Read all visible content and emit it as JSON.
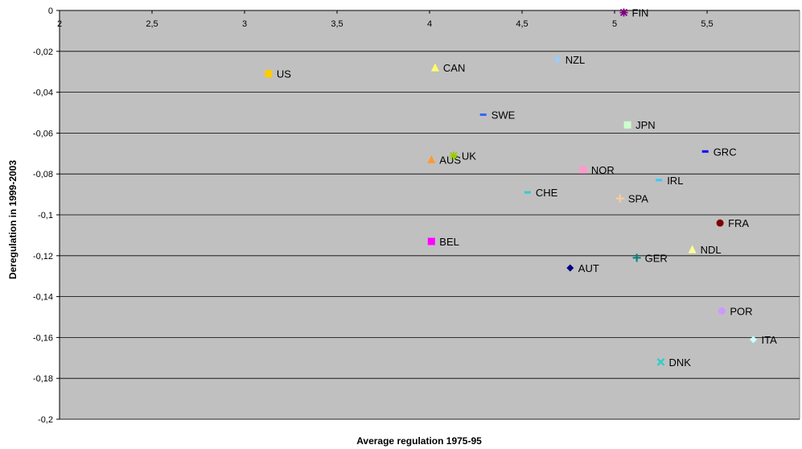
{
  "chart_data": {
    "type": "scatter",
    "xlabel": "Average regulation 1975-95",
    "ylabel": "Deregulation in 1999-2003",
    "xlim": [
      2,
      6
    ],
    "ylim": [
      -0.2,
      0
    ],
    "x_ticks": [
      {
        "value": 2,
        "label": "2"
      },
      {
        "value": 2.5,
        "label": "2,5"
      },
      {
        "value": 3,
        "label": "3"
      },
      {
        "value": 3.5,
        "label": "3,5"
      },
      {
        "value": 4,
        "label": "4"
      },
      {
        "value": 4.5,
        "label": "4,5"
      },
      {
        "value": 5,
        "label": "5"
      },
      {
        "value": 5.5,
        "label": "5,5"
      }
    ],
    "y_ticks": [
      {
        "value": 0,
        "label": "0"
      },
      {
        "value": -0.02,
        "label": "-0,02"
      },
      {
        "value": -0.04,
        "label": "-0,04"
      },
      {
        "value": -0.06,
        "label": "-0,06"
      },
      {
        "value": -0.08,
        "label": "-0,08"
      },
      {
        "value": -0.1,
        "label": "-0,1"
      },
      {
        "value": -0.12,
        "label": "-0,12"
      },
      {
        "value": -0.14,
        "label": "-0,14"
      },
      {
        "value": -0.16,
        "label": "-0,16"
      },
      {
        "value": -0.18,
        "label": "-0,18"
      },
      {
        "value": -0.2,
        "label": "-0,2"
      }
    ],
    "grid": "horizontal",
    "plot_background": "#c0c0c0",
    "points": [
      {
        "label": "FIN",
        "x": 5.05,
        "y": -0.001,
        "marker": "star",
        "color": "#800080"
      },
      {
        "label": "US",
        "x": 3.13,
        "y": -0.031,
        "marker": "square",
        "color": "#ffcc00"
      },
      {
        "label": "CAN",
        "x": 4.03,
        "y": -0.028,
        "marker": "triangle",
        "color": "#ffff66"
      },
      {
        "label": "NZL",
        "x": 4.69,
        "y": -0.024,
        "marker": "diamond",
        "color": "#99ccff"
      },
      {
        "label": "SWE",
        "x": 4.29,
        "y": -0.051,
        "marker": "dash",
        "color": "#3366ff"
      },
      {
        "label": "JPN",
        "x": 5.07,
        "y": -0.056,
        "marker": "square",
        "color": "#ccffcc"
      },
      {
        "label": "GRC",
        "x": 5.49,
        "y": -0.069,
        "marker": "dash",
        "color": "#0000ff"
      },
      {
        "label": "AUS",
        "x": 4.01,
        "y": -0.073,
        "marker": "triangle",
        "color": "#ff9933"
      },
      {
        "label": "UK",
        "x": 4.13,
        "y": -0.071,
        "marker": "star",
        "color": "#99cc00"
      },
      {
        "label": "NOR",
        "x": 4.83,
        "y": -0.078,
        "marker": "square",
        "color": "#ff99cc"
      },
      {
        "label": "IRL",
        "x": 5.24,
        "y": -0.083,
        "marker": "dash",
        "color": "#33ccff"
      },
      {
        "label": "CHE",
        "x": 4.53,
        "y": -0.089,
        "marker": "dash",
        "color": "#33cccc"
      },
      {
        "label": "SPA",
        "x": 5.03,
        "y": -0.092,
        "marker": "plus",
        "color": "#ffcc99"
      },
      {
        "label": "FRA",
        "x": 5.57,
        "y": -0.104,
        "marker": "circle",
        "color": "#800000"
      },
      {
        "label": "BEL",
        "x": 4.01,
        "y": -0.113,
        "marker": "square",
        "color": "#ff00ff"
      },
      {
        "label": "NDL",
        "x": 5.42,
        "y": -0.117,
        "marker": "triangle",
        "color": "#ffff99"
      },
      {
        "label": "GER",
        "x": 5.12,
        "y": -0.121,
        "marker": "plus",
        "color": "#008080"
      },
      {
        "label": "AUT",
        "x": 4.76,
        "y": -0.126,
        "marker": "diamond",
        "color": "#000080"
      },
      {
        "label": "POR",
        "x": 5.58,
        "y": -0.147,
        "marker": "circle",
        "color": "#cc99ff"
      },
      {
        "label": "ITA",
        "x": 5.75,
        "y": -0.161,
        "marker": "diamond",
        "color": "#ccffff"
      },
      {
        "label": "DNK",
        "x": 5.25,
        "y": -0.172,
        "marker": "x",
        "color": "#33cccc"
      }
    ]
  }
}
